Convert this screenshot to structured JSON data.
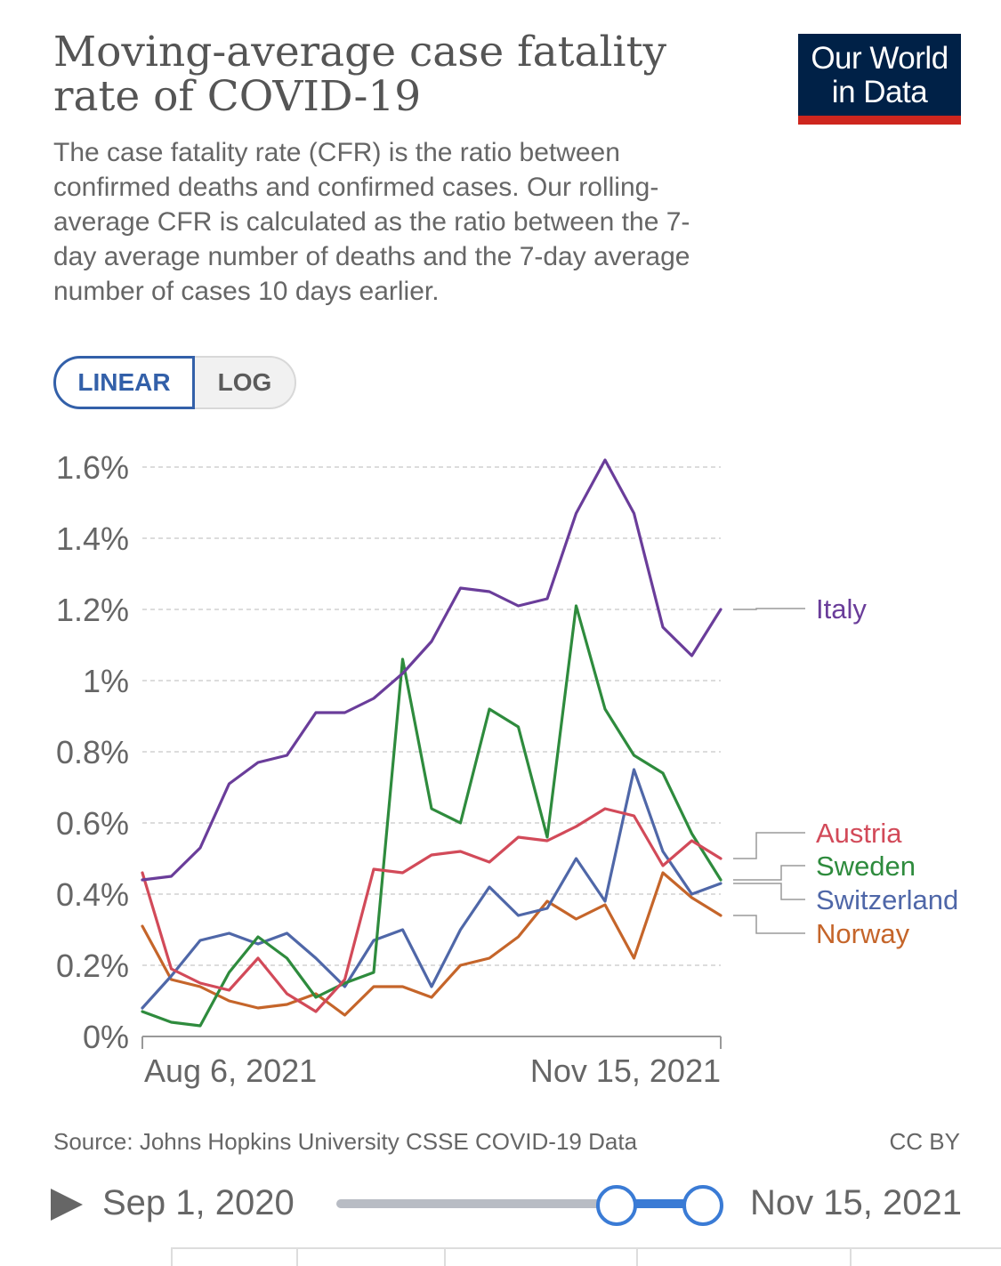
{
  "header": {
    "title": "Moving-average case fatality rate of COVID-19",
    "subtitle": "The case fatality rate (CFR) is the ratio between confirmed deaths and confirmed cases. Our rolling-average CFR is calculated as the ratio between the 7-day average number of deaths and the 7-day average number of cases 10 days earlier.",
    "logo_line1": "Our World",
    "logo_line2": "in Data"
  },
  "scale_toggle": {
    "linear_label": "LINEAR",
    "log_label": "LOG",
    "selected": "LINEAR"
  },
  "footer": {
    "source": "Source: Johns Hopkins University CSSE COVID-19 Data",
    "license": "CC BY"
  },
  "timeline": {
    "start_label": "Sep 1, 2020",
    "end_label": "Nov 15, 2021"
  },
  "colors": {
    "italy": "#6a3d9a",
    "austria": "#d24a59",
    "sweden": "#2e8b3d",
    "switzerland": "#4f67a8",
    "norway": "#c5652a",
    "logo_bg": "#002147",
    "logo_bar": "#ce261e",
    "accent": "#3360a9"
  },
  "chart_data": {
    "type": "line",
    "title": "Moving-average case fatality rate of COVID-19",
    "xlabel": "",
    "ylabel": "",
    "x_range": [
      "Aug 6, 2021",
      "Nov 15, 2021"
    ],
    "x_tick_labels": [
      "Aug 6, 2021",
      "Nov 15, 2021"
    ],
    "ylim": [
      0,
      1.6
    ],
    "y_ticks": [
      0,
      0.2,
      0.4,
      0.6,
      0.8,
      1,
      1.2,
      1.4,
      1.6
    ],
    "y_tick_labels": [
      "0%",
      "0.2%",
      "0.4%",
      "0.6%",
      "0.8%",
      "1%",
      "1.2%",
      "1.4%",
      "1.6%"
    ],
    "grid": "horizontal dashed",
    "x_days": [
      0,
      5,
      10,
      15,
      20,
      25,
      30,
      35,
      40,
      45,
      50,
      55,
      60,
      65,
      70,
      75,
      80,
      85,
      90,
      95,
      100
    ],
    "series": [
      {
        "name": "Italy",
        "color": "#6a3d9a",
        "values": [
          0.44,
          0.45,
          0.53,
          0.71,
          0.77,
          0.79,
          0.91,
          0.91,
          0.95,
          1.02,
          1.11,
          1.26,
          1.25,
          1.21,
          1.23,
          1.47,
          1.62,
          1.47,
          1.15,
          1.07,
          1.2
        ]
      },
      {
        "name": "Austria",
        "color": "#d24a59",
        "values": [
          0.46,
          0.19,
          0.15,
          0.13,
          0.22,
          0.12,
          0.07,
          0.16,
          0.47,
          0.46,
          0.51,
          0.52,
          0.49,
          0.56,
          0.55,
          0.59,
          0.64,
          0.62,
          0.48,
          0.55,
          0.5
        ]
      },
      {
        "name": "Sweden",
        "color": "#2e8b3d",
        "values": [
          0.07,
          0.04,
          0.03,
          0.18,
          0.28,
          0.22,
          0.11,
          0.15,
          0.18,
          1.06,
          0.64,
          0.6,
          0.92,
          0.87,
          0.56,
          1.21,
          0.92,
          0.79,
          0.74,
          0.57,
          0.44
        ]
      },
      {
        "name": "Switzerland",
        "color": "#4f67a8",
        "values": [
          0.08,
          0.17,
          0.27,
          0.29,
          0.26,
          0.29,
          0.22,
          0.14,
          0.27,
          0.3,
          0.14,
          0.3,
          0.42,
          0.34,
          0.36,
          0.5,
          0.38,
          0.75,
          0.52,
          0.4,
          0.43
        ]
      },
      {
        "name": "Norway",
        "color": "#c5652a",
        "values": [
          0.31,
          0.16,
          0.14,
          0.1,
          0.08,
          0.09,
          0.12,
          0.06,
          0.14,
          0.14,
          0.11,
          0.2,
          0.22,
          0.28,
          0.38,
          0.33,
          0.37,
          0.22,
          0.46,
          0.39,
          0.34
        ]
      }
    ]
  }
}
